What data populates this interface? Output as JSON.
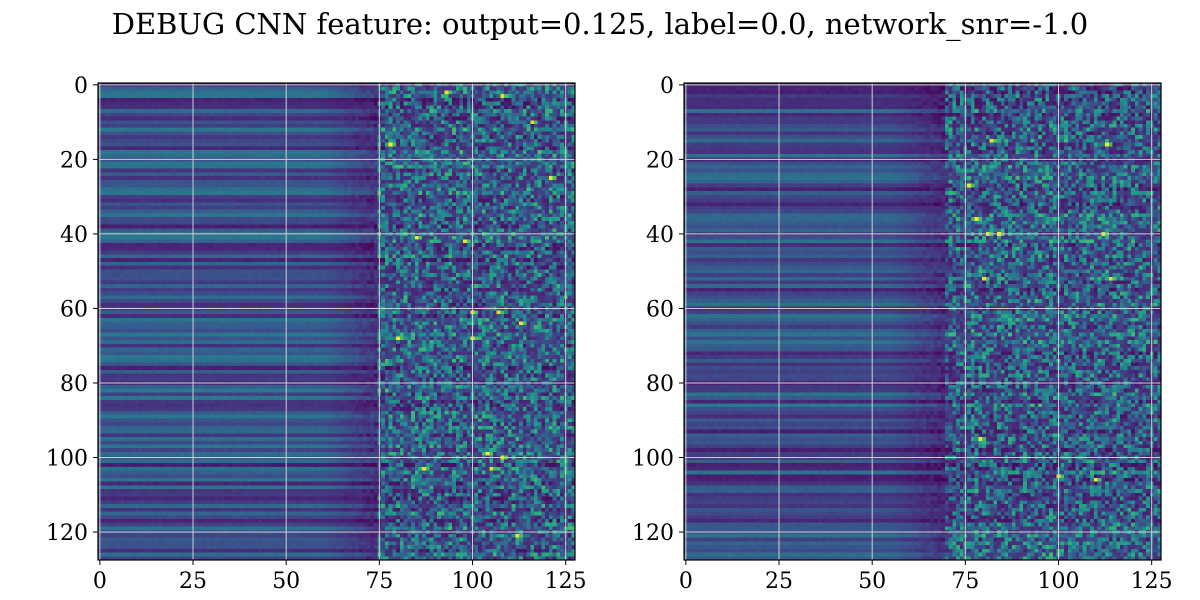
{
  "title": "DEBUG CNN feature: output=0.125, label=0.0, network_snr=-1.0",
  "chart_data": [
    {
      "type": "heatmap",
      "colormap": "viridis",
      "rows": 128,
      "cols": 128,
      "xlim": [
        0,
        127
      ],
      "ylim": [
        127,
        0
      ],
      "xticks": [
        0,
        25,
        50,
        75,
        100,
        125
      ],
      "yticks": [
        0,
        20,
        40,
        60,
        80,
        100,
        120
      ],
      "grid": true,
      "noise_onset_col": 75,
      "hotspots": [
        [
          2,
          93
        ],
        [
          3,
          108
        ],
        [
          10,
          116
        ],
        [
          16,
          78
        ],
        [
          25,
          121
        ],
        [
          41,
          85
        ],
        [
          42,
          98
        ],
        [
          61,
          100
        ],
        [
          61,
          107
        ],
        [
          64,
          113
        ],
        [
          68,
          100
        ],
        [
          68,
          80
        ],
        [
          99,
          104
        ],
        [
          100,
          108
        ],
        [
          103,
          87
        ],
        [
          103,
          105
        ],
        [
          121,
          112
        ]
      ]
    },
    {
      "type": "heatmap",
      "colormap": "viridis",
      "rows": 128,
      "cols": 128,
      "xlim": [
        0,
        127
      ],
      "ylim": [
        127,
        0
      ],
      "xticks": [
        0,
        25,
        50,
        75,
        100,
        125
      ],
      "yticks": [
        0,
        20,
        40,
        60,
        80,
        100,
        120
      ],
      "grid": true,
      "noise_onset_col": 70,
      "hotspots": [
        [
          15,
          82
        ],
        [
          16,
          113
        ],
        [
          27,
          76
        ],
        [
          36,
          78
        ],
        [
          40,
          81
        ],
        [
          40,
          84
        ],
        [
          40,
          112
        ],
        [
          52,
          114
        ],
        [
          52,
          80
        ],
        [
          95,
          79
        ],
        [
          105,
          100
        ],
        [
          106,
          110
        ]
      ]
    }
  ]
}
